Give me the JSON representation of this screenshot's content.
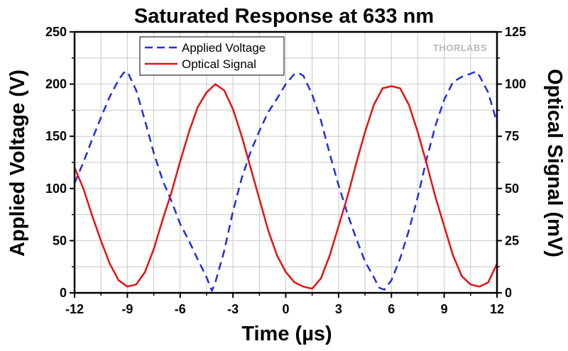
{
  "chart_data": {
    "type": "line",
    "title": "Saturated Response at 633 nm",
    "xlabel": "Time (µs)",
    "ylabel": "Applied Voltage (V)",
    "y2label": "Optical Signal (mV)",
    "xlim": [
      -12,
      12
    ],
    "ylim": [
      0,
      250
    ],
    "y2lim": [
      0,
      125
    ],
    "x_ticks": [
      -12,
      -9,
      -6,
      -3,
      0,
      3,
      6,
      9,
      12
    ],
    "y_ticks": [
      0,
      50,
      100,
      150,
      200,
      250
    ],
    "y2_ticks": [
      0,
      25,
      50,
      75,
      100,
      125
    ],
    "grid": true,
    "legend_position": "top-center",
    "watermark": "THORLABS",
    "series": [
      {
        "name": "Applied Voltage",
        "axis": "left",
        "style": "dashed",
        "color": "#1f2fdc",
        "x": [
          -12,
          -11.5,
          -11,
          -10.5,
          -10,
          -9.5,
          -9.2,
          -9,
          -8.5,
          -8,
          -7.5,
          -7,
          -6.5,
          -6,
          -5.5,
          -5,
          -4.5,
          -4.2,
          -4,
          -3.5,
          -3,
          -2.5,
          -2,
          -1.5,
          -1,
          -0.5,
          0,
          0.5,
          0.8,
          1,
          1.5,
          2,
          2.5,
          3,
          3.5,
          4,
          4.5,
          5,
          5.3,
          5.6,
          6,
          6.5,
          7,
          7.5,
          8,
          8.5,
          9,
          9.5,
          10,
          10.5,
          10.8,
          11,
          11.5,
          12
        ],
        "values": [
          105,
          125,
          147,
          168,
          188,
          204,
          211,
          212,
          194,
          165,
          134,
          108,
          88,
          66,
          50,
          32,
          15,
          2,
          10,
          40,
          78,
          110,
          135,
          155,
          173,
          186,
          200,
          210,
          210,
          208,
          190,
          165,
          133,
          103,
          76,
          52,
          30,
          15,
          5,
          3,
          12,
          33,
          60,
          92,
          128,
          160,
          185,
          202,
          207,
          210,
          212,
          208,
          192,
          163
        ]
      },
      {
        "name": "Optical Signal",
        "axis": "right",
        "style": "solid",
        "color": "#e81010",
        "x": [
          -12,
          -11.5,
          -11,
          -10.5,
          -10,
          -9.5,
          -9,
          -8.5,
          -8,
          -7.5,
          -7,
          -6.5,
          -6,
          -5.5,
          -5,
          -4.5,
          -4,
          -3.5,
          -3,
          -2.5,
          -2,
          -1.5,
          -1,
          -0.5,
          0,
          0.5,
          1,
          1.5,
          2,
          2.5,
          3,
          3.5,
          4,
          4.5,
          5,
          5.5,
          6,
          6.5,
          7,
          7.5,
          8,
          8.5,
          9,
          9.5,
          10,
          10.5,
          11,
          11.5,
          12
        ],
        "values": [
          60,
          50,
          37,
          25,
          14,
          6,
          3,
          4,
          10,
          21,
          35,
          48,
          63,
          77,
          89,
          96,
          100,
          97,
          88,
          75,
          60,
          45,
          30,
          18,
          10,
          5,
          3,
          2,
          7,
          18,
          32,
          46,
          62,
          77,
          90,
          98,
          99,
          98,
          90,
          77,
          62,
          46,
          32,
          18,
          8,
          4,
          3,
          5,
          14
        ]
      }
    ]
  }
}
